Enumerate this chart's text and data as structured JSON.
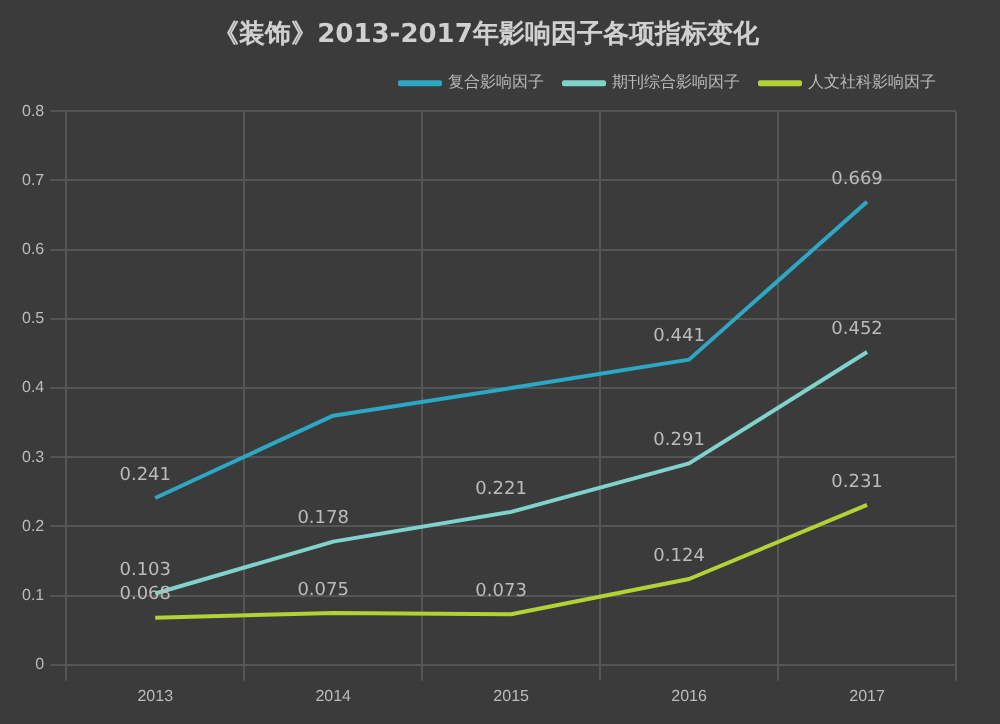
{
  "chart_data": {
    "type": "line",
    "title": "《装饰》2013-2017年影响因子各项指标变化",
    "categories": [
      "2013",
      "2014",
      "2015",
      "2016",
      "2017"
    ],
    "series": [
      {
        "name": "复合影响因子",
        "color": "#2ba9c4",
        "values": [
          0.241,
          0.36,
          0.4,
          0.441,
          0.669
        ],
        "value_labels": [
          "0.241",
          null,
          null,
          "0.441",
          "0.669"
        ]
      },
      {
        "name": "期刊综合影响因子",
        "color": "#7fd3cc",
        "values": [
          0.103,
          0.178,
          0.221,
          0.291,
          0.452
        ],
        "value_labels": [
          "0.103",
          "0.178",
          "0.221",
          "0.291",
          "0.452"
        ]
      },
      {
        "name": "人文社科影响因子",
        "color": "#b3d235",
        "values": [
          0.068,
          0.075,
          0.073,
          0.124,
          0.231
        ],
        "value_labels": [
          "0.068",
          "0.075",
          "0.073",
          "0.124",
          "0.231"
        ]
      }
    ],
    "ylim": [
      0,
      0.8
    ],
    "yticks": [
      0,
      0.1,
      0.2,
      0.3,
      0.4,
      0.5,
      0.6,
      0.7,
      0.8
    ],
    "grid": true,
    "legend": "top",
    "marker": "none",
    "line_style": "solid"
  }
}
